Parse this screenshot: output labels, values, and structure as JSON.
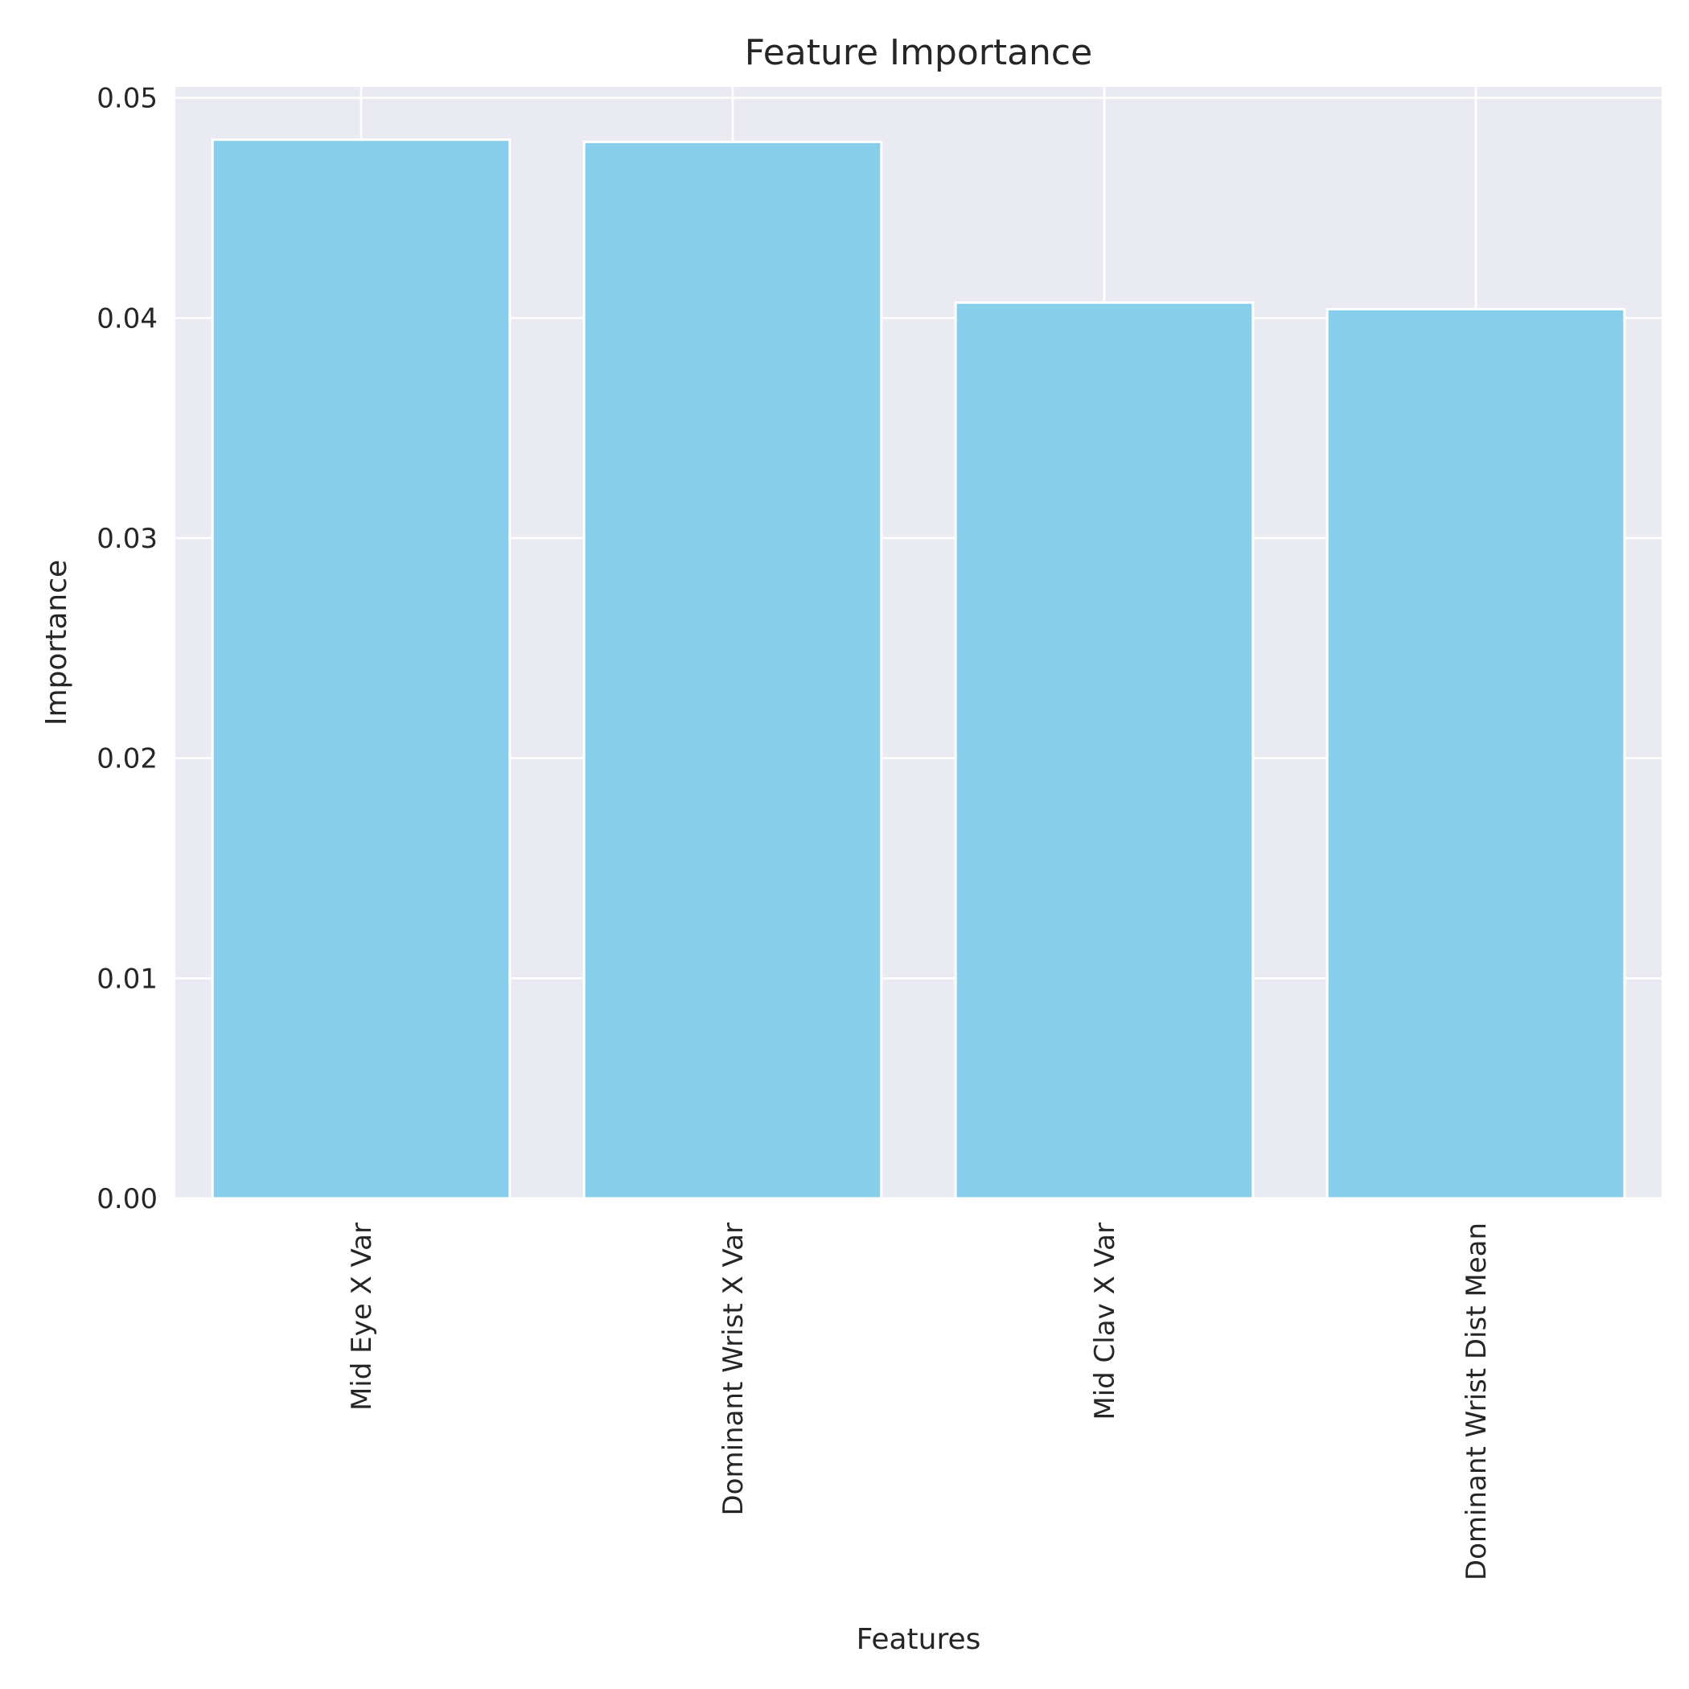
{
  "chart_data": {
    "type": "bar",
    "title": "Feature Importance",
    "xlabel": "Features",
    "ylabel": "Importance",
    "categories": [
      "Mid Eye X Var",
      "Dominant Wrist X Var",
      "Mid Clav X Var",
      "Dominant Wrist Dist Mean"
    ],
    "values": [
      0.0481,
      0.048,
      0.0407,
      0.0404
    ],
    "ylim": [
      0,
      0.0505
    ],
    "yticks": [
      0.0,
      0.01,
      0.02,
      0.03,
      0.04,
      0.05
    ],
    "ytick_labels": [
      "0.00",
      "0.01",
      "0.02",
      "0.03",
      "0.04",
      "0.05"
    ],
    "grid": true,
    "bar_color": "#87CEEB",
    "background_color": "#EAEAF2"
  }
}
